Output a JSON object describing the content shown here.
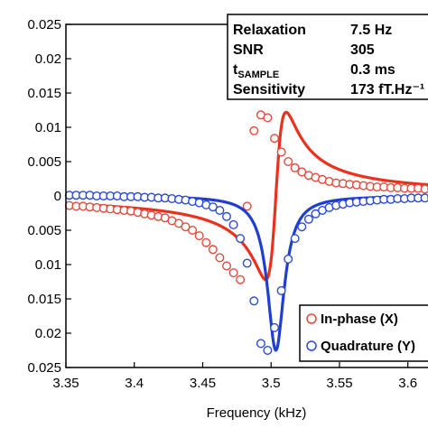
{
  "chart_data": {
    "type": "line",
    "xlabel": "Frequency (kHz)",
    "ylabel": "",
    "xlim": [
      3.35,
      3.62
    ],
    "ylim": [
      -0.025,
      0.025
    ],
    "x_ticks": [
      "3.35",
      "3.4",
      "3.45",
      "3.5",
      "3.55",
      "3.6"
    ],
    "y_ticks": [
      "0.025",
      "0.02",
      "0.015",
      "0.01",
      "0.005",
      "0",
      "0.005",
      "0.01",
      "0.015",
      "0.02",
      "0.025"
    ],
    "y_tick_values": [
      0.025,
      0.02,
      0.015,
      0.01,
      0.005,
      0,
      -0.005,
      -0.01,
      -0.015,
      -0.02,
      -0.025
    ],
    "grid": false,
    "legend_position": "bottom-right",
    "info_box": {
      "rows": [
        {
          "label": "Relaxation",
          "label_sub": "",
          "value": "7.5 Hz"
        },
        {
          "label": "SNR",
          "label_sub": "",
          "value": "305"
        },
        {
          "label": "t",
          "label_sub": "SAMPLE",
          "value": "0.3 ms"
        },
        {
          "label": "Sensitivity",
          "label_sub": "",
          "value": "173 fT.Hz⁻¹"
        }
      ]
    },
    "resonance": {
      "center_khz": 3.5035,
      "halfwidth_khz": 0.0075
    },
    "series": [
      {
        "name": "In-phase (X)",
        "color": "#e8321e",
        "marker_color": "#e04a3a",
        "x": [
          3.3525,
          3.3575,
          3.3625,
          3.3675,
          3.3725,
          3.3775,
          3.3825,
          3.3875,
          3.3925,
          3.3975,
          3.4025,
          3.4075,
          3.4125,
          3.4175,
          3.4225,
          3.4275,
          3.4325,
          3.4375,
          3.4425,
          3.4475,
          3.4525,
          3.4575,
          3.4625,
          3.4675,
          3.4725,
          3.4775,
          3.4825,
          3.4875,
          3.4925,
          3.4975,
          3.5025,
          3.5075,
          3.5125,
          3.5175,
          3.5225,
          3.5275,
          3.5325,
          3.5375,
          3.5425,
          3.5475,
          3.5525,
          3.5575,
          3.5625,
          3.5675,
          3.5725,
          3.5775,
          3.5825,
          3.5875,
          3.5925,
          3.5975,
          3.6025,
          3.6075,
          3.6125,
          3.6175
        ],
        "y": [
          -0.0014,
          -0.0015,
          -0.0015,
          -0.0016,
          -0.0017,
          -0.0018,
          -0.0019,
          -0.002,
          -0.0021,
          -0.0022,
          -0.0024,
          -0.0026,
          -0.0028,
          -0.003,
          -0.0032,
          -0.0036,
          -0.004,
          -0.0045,
          -0.005,
          -0.0058,
          -0.0068,
          -0.0078,
          -0.009,
          -0.0102,
          -0.0112,
          -0.0122,
          -0.0015,
          0.0095,
          0.0118,
          0.0114,
          0.0084,
          0.0064,
          0.005,
          0.0041,
          0.0035,
          0.003,
          0.0027,
          0.0024,
          0.0021,
          0.0019,
          0.0018,
          0.0017,
          0.0016,
          0.0015,
          0.0014,
          0.0013,
          0.0013,
          0.0012,
          0.0012,
          0.0011,
          0.0011,
          0.0011,
          0.001,
          0.001
        ]
      },
      {
        "name": "Quadrature (Y)",
        "color": "#1f3fcc",
        "marker_color": "#2a4ad6",
        "x": [
          3.3525,
          3.3575,
          3.3625,
          3.3675,
          3.3725,
          3.3775,
          3.3825,
          3.3875,
          3.3925,
          3.3975,
          3.4025,
          3.4075,
          3.4125,
          3.4175,
          3.4225,
          3.4275,
          3.4325,
          3.4375,
          3.4425,
          3.4475,
          3.4525,
          3.4575,
          3.4625,
          3.4675,
          3.4725,
          3.4775,
          3.4825,
          3.4875,
          3.4925,
          3.4975,
          3.5025,
          3.5075,
          3.5125,
          3.5175,
          3.5225,
          3.5275,
          3.5325,
          3.5375,
          3.5425,
          3.5475,
          3.5525,
          3.5575,
          3.5625,
          3.5675,
          3.5725,
          3.5775,
          3.5825,
          3.5875,
          3.5925,
          3.5975,
          3.6025,
          3.6075,
          3.6125,
          3.6175
        ],
        "y": [
          0.0001,
          0.0001,
          0.0001,
          0.0001,
          0,
          0,
          0,
          0,
          -0.0001,
          -0.0001,
          -0.0001,
          -0.0002,
          -0.0002,
          -0.0003,
          -0.0003,
          -0.0004,
          -0.0005,
          -0.0006,
          -0.0008,
          -0.001,
          -0.0013,
          -0.0016,
          -0.0021,
          -0.003,
          -0.0042,
          -0.0062,
          -0.0098,
          -0.0153,
          -0.0215,
          -0.0225,
          -0.0192,
          -0.0138,
          -0.0092,
          -0.0062,
          -0.0045,
          -0.0034,
          -0.0026,
          -0.0021,
          -0.0017,
          -0.0014,
          -0.0012,
          -0.001,
          -0.0009,
          -0.0008,
          -0.0007,
          -0.0006,
          -0.0005,
          -0.0005,
          -0.0004,
          -0.0004,
          -0.0003,
          -0.0003,
          -0.0003,
          -0.0002
        ]
      }
    ]
  }
}
